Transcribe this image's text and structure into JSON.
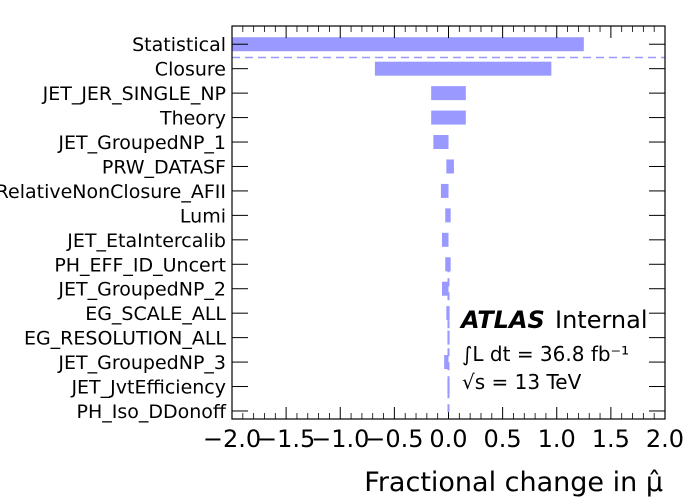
{
  "chart_data": {
    "type": "bar",
    "orientation": "horizontal",
    "categories": [
      "Statistical",
      "Closure",
      "JET_JER_SINGLE_NP",
      "Theory",
      "JET_GroupedNP_1",
      "PRW_DATASF",
      "RelativeNonClosure_AFII",
      "Lumi",
      "JET_EtaIntercalib",
      "PH_EFF_ID_Uncert",
      "JET_GroupedNP_2",
      "EG_SCALE_ALL",
      "EG_RESOLUTION_ALL",
      "JET_GroupedNP_3",
      "JET_JvtEfficiency",
      "PH_Iso_DDonoff"
    ],
    "series": [
      {
        "ranges": [
          [
            -2.0,
            1.25
          ],
          [
            -0.68,
            0.95
          ],
          [
            -0.16,
            0.16
          ],
          [
            -0.16,
            0.16
          ],
          [
            -0.14,
            0.0
          ],
          [
            -0.02,
            0.05
          ],
          [
            -0.07,
            0.0
          ],
          [
            -0.03,
            0.02
          ],
          [
            -0.06,
            0.0
          ],
          [
            -0.03,
            0.02
          ],
          [
            -0.06,
            0.0
          ],
          [
            -0.02,
            0.01
          ],
          [
            -0.01,
            0.01
          ],
          [
            -0.04,
            0.0
          ],
          [
            -0.01,
            0.01
          ],
          [
            0.0,
            0.0
          ]
        ]
      }
    ],
    "color": "#9999ff",
    "xlabel": "Fractional change in μ̂",
    "xlim": [
      -2.0,
      2.0
    ],
    "xticks": [
      "−2.0",
      "−1.5",
      "−1.0",
      "−0.5",
      "0.0",
      "0.5",
      "1.0",
      "1.5",
      "2.0"
    ],
    "xtick_values": [
      -2.0,
      -1.5,
      -1.0,
      -0.5,
      0.0,
      0.5,
      1.0,
      1.5,
      2.0
    ],
    "separator_after_category": "Statistical",
    "separator_style": "dashed",
    "annotation": {
      "experiment": "ATLAS",
      "status": "Internal",
      "luminosity": "∫L dt = 36.8 fb⁻¹",
      "energy": "√s = 13 TeV"
    },
    "grid": false
  }
}
